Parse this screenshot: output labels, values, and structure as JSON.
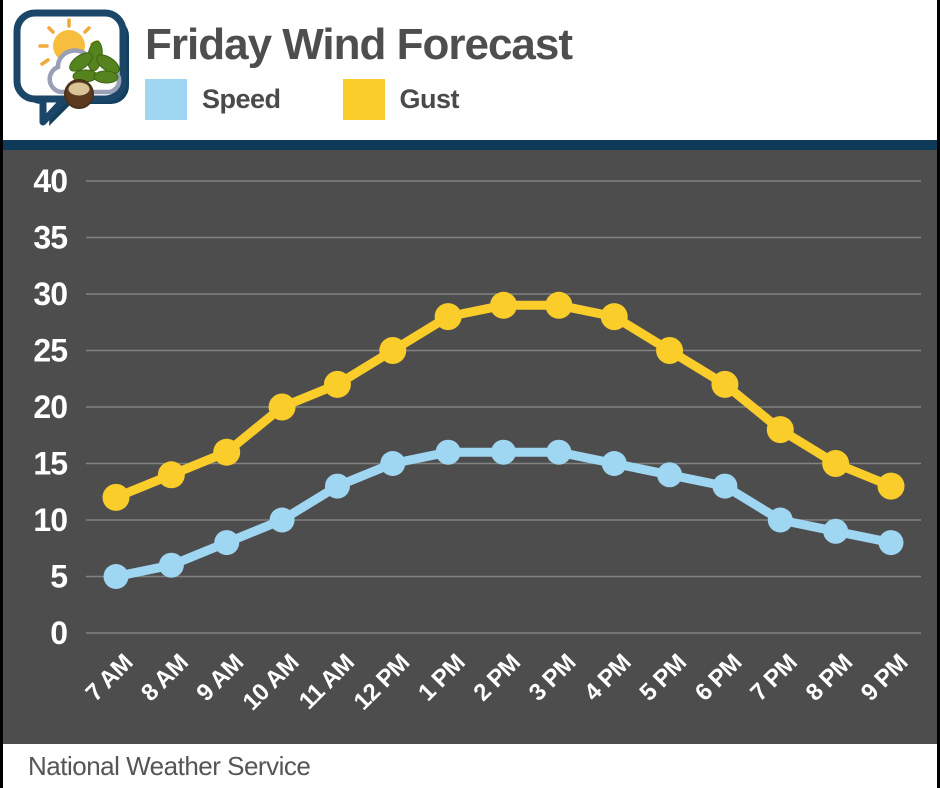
{
  "header": {
    "title": "Friday Wind Forecast",
    "logo": "weather-speech-bubble-logo",
    "legend": [
      {
        "label": "Speed",
        "color": "#9FD7F3"
      },
      {
        "label": "Gust",
        "color": "#FACD2B"
      }
    ]
  },
  "footer": {
    "source": "National Weather Service"
  },
  "colors": {
    "accent_bar": "#0E3A59",
    "chart_background": "#4D4D4D",
    "gridline": "#828282",
    "axis_text": "#FFFFFF",
    "speed_line": "#9FD7F3",
    "gust_line": "#FACD2B"
  },
  "chart_data": {
    "type": "line",
    "title": "Friday Wind Forecast",
    "categories": [
      "7 AM",
      "8 AM",
      "9 AM",
      "10 AM",
      "11 AM",
      "12 PM",
      "1 PM",
      "2 PM",
      "3 PM",
      "4 PM",
      "5 PM",
      "6 PM",
      "7 PM",
      "8 PM",
      "9 PM"
    ],
    "series": [
      {
        "name": "Speed",
        "color": "#9FD7F3",
        "values": [
          5,
          6,
          8,
          10,
          13,
          15,
          16,
          16,
          16,
          15,
          14,
          13,
          10,
          9,
          8
        ]
      },
      {
        "name": "Gust",
        "color": "#FACD2B",
        "values": [
          12,
          14,
          16,
          20,
          22,
          25,
          28,
          29,
          29,
          28,
          25,
          22,
          18,
          15,
          13
        ]
      }
    ],
    "xlabel": "",
    "ylabel": "",
    "ylim": [
      0,
      40
    ],
    "yticks": [
      40,
      35,
      30,
      25,
      20,
      15,
      10,
      5,
      0
    ],
    "grid": true,
    "legend_position": "top",
    "x_tick_rotation": -45
  }
}
